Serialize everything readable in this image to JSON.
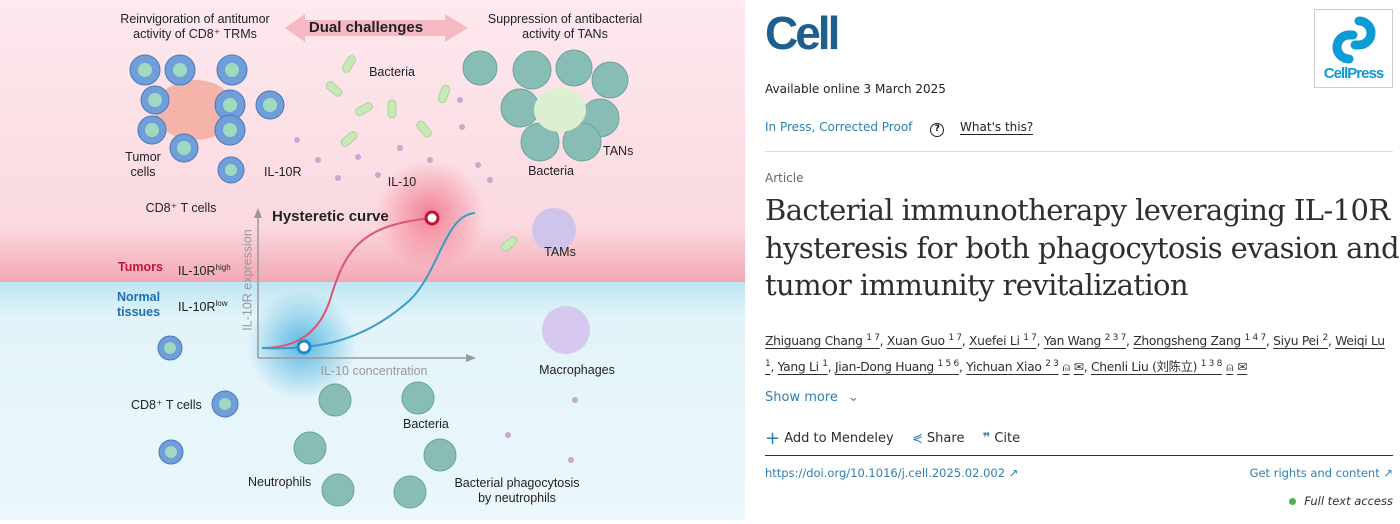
{
  "figure": {
    "top_left_caption": [
      "Reinvigoration of antitumor",
      "activity of CD8⁺ TRMs"
    ],
    "center_banner": "Dual challenges",
    "top_right_caption": [
      "Suppression of antibacterial",
      "activity of TANs"
    ],
    "labels": {
      "bacteria_top": "Bacteria",
      "il10r": "IL-10R",
      "il10": "IL-10",
      "tumor_cells": [
        "Tumor",
        "cells"
      ],
      "cd8_top": "CD8⁺ T cells",
      "tans": "TANs",
      "bacteria_tans": "Bacteria",
      "tams": "TAMs",
      "hysteretic": "Hysteretic curve",
      "tumors": "Tumors",
      "il10r_high": "IL-10R",
      "high_sup": "high",
      "normal": [
        "Normal",
        "tissues"
      ],
      "il10r_low": "IL-10R",
      "low_sup": "low",
      "y_axis": "IL-10R expression",
      "x_axis": "IL-10 concentration",
      "macrophages": "Macrophages",
      "cd8_bottom": "CD8⁺ T cells",
      "bacteria_bottom": "Bacteria",
      "neutrophils": "Neutrophils",
      "phagocytosis": [
        "Bacterial phagocytosis",
        "by neutrophils"
      ]
    },
    "colors": {
      "tumor_red": "#c0153a",
      "normal_blue": "#1f6fb0",
      "pink_bg": "#fce4ea",
      "blue_bg": "#e4f5fa"
    }
  },
  "journal": {
    "logo": "Cell",
    "publisher_logo": "CellPress"
  },
  "available_online": "Available online 3 March 2025",
  "status": {
    "label": "In Press, Corrected Proof",
    "help_icon": "question-circle-icon",
    "whats_this": "What's this?"
  },
  "article_type": "Article",
  "title": [
    "Bacterial immunotherapy leveraging IL-10R",
    "hysteresis for both phagocytosis evasion and",
    "tumor immunity revitalization"
  ],
  "authors": [
    {
      "name": "Zhiguang Chang",
      "sup": "1 7"
    },
    {
      "name": "Xuan Guo",
      "sup": "1 7"
    },
    {
      "name": "Xuefei Li",
      "sup": "1 7"
    },
    {
      "name": "Yan Wang",
      "sup": "2 3 7"
    },
    {
      "name": "Zhongsheng Zang",
      "sup": "1 4 7"
    },
    {
      "name": "Siyu Pei",
      "sup": "2"
    },
    {
      "name": "Weiqi Lu",
      "sup": "1"
    },
    {
      "name": "Yang Li",
      "sup": "1"
    },
    {
      "name": "Jian-Dong Huang",
      "sup": "1 5 6"
    },
    {
      "name": "Yichuan Xiao",
      "sup": "2 3",
      "icons": [
        "person-icon",
        "mail-icon"
      ]
    },
    {
      "name": "Chenli Liu (刘陈立)",
      "sup": "1 3 8",
      "icons": [
        "person-icon",
        "mail-icon"
      ]
    }
  ],
  "show_more": "Show more",
  "actions": {
    "mendeley": "Add to Mendeley",
    "share": "Share",
    "cite": "Cite"
  },
  "doi": "https://doi.org/10.1016/j.cell.2025.02.002",
  "rights": "Get rights and content",
  "access": "Full text access",
  "colors": {
    "link": "#2e7fb0",
    "logo": "#1e5f8e",
    "cellpress": "#0b9bd7",
    "access_dot": "#4caf50"
  }
}
